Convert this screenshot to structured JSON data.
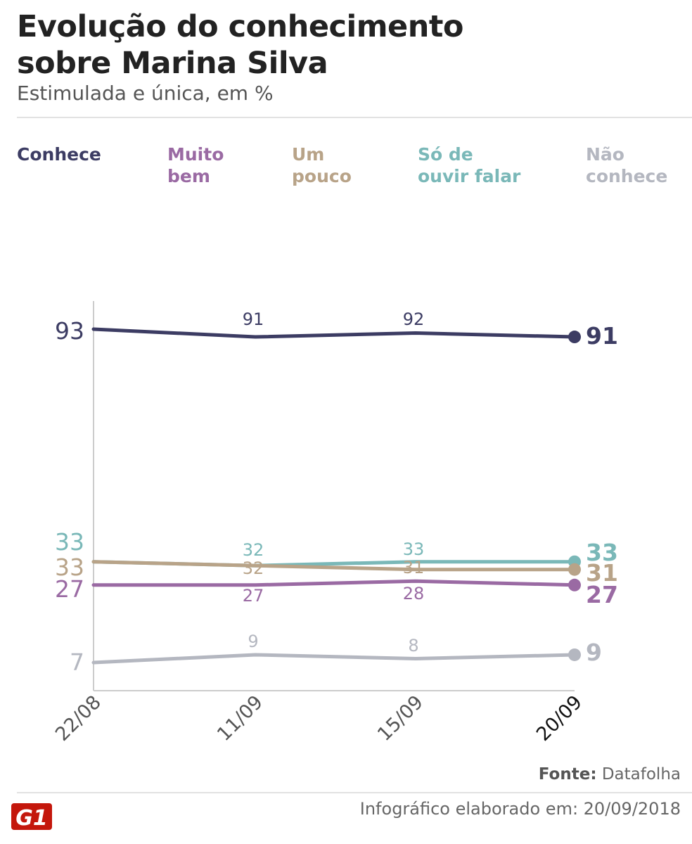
{
  "header": {
    "title_line1": "Evolução do conhecimento",
    "title_line2": "sobre Marina Silva",
    "subtitle": "Estimulada e única, em %"
  },
  "legend": [
    {
      "line1": "Conhece",
      "line2": "",
      "color": "#3c3c63"
    },
    {
      "line1": "Muito",
      "line2": "bem",
      "color": "#9a6aa3"
    },
    {
      "line1": "Um",
      "line2": "pouco",
      "color": "#b8a388"
    },
    {
      "line1": "Só de",
      "line2": "ouvir falar",
      "color": "#7ab8b8"
    },
    {
      "line1": "Não",
      "line2": "conhece",
      "color": "#b4b7c0"
    }
  ],
  "chart_data": {
    "type": "line",
    "title": "Evolução do conhecimento sobre Marina Silva",
    "subtitle": "Estimulada e única, em %",
    "categories": [
      "22/08",
      "11/09",
      "15/09",
      "20/09"
    ],
    "series": [
      {
        "name": "Conhece",
        "values": [
          93,
          91,
          92,
          91
        ],
        "color": "#3c3c63"
      },
      {
        "name": "Muito bem",
        "values": [
          27,
          27,
          28,
          27
        ],
        "color": "#9a6aa3"
      },
      {
        "name": "Um pouco",
        "values": [
          33,
          32,
          31,
          31
        ],
        "color": "#b8a388"
      },
      {
        "name": "Só de ouvir falar",
        "values": [
          33,
          32,
          33,
          33
        ],
        "color": "#7ab8b8"
      },
      {
        "name": "Não conhece",
        "values": [
          7,
          9,
          8,
          9
        ],
        "color": "#b4b7c0"
      }
    ],
    "ylim": [
      0,
      100
    ],
    "xlabel": "",
    "ylabel": ""
  },
  "footer": {
    "source_label": "Fonte:",
    "source_value": "Datafolha",
    "credit": "Infográfico elaborado em: 20/09/2018",
    "logo_text": "G1"
  }
}
